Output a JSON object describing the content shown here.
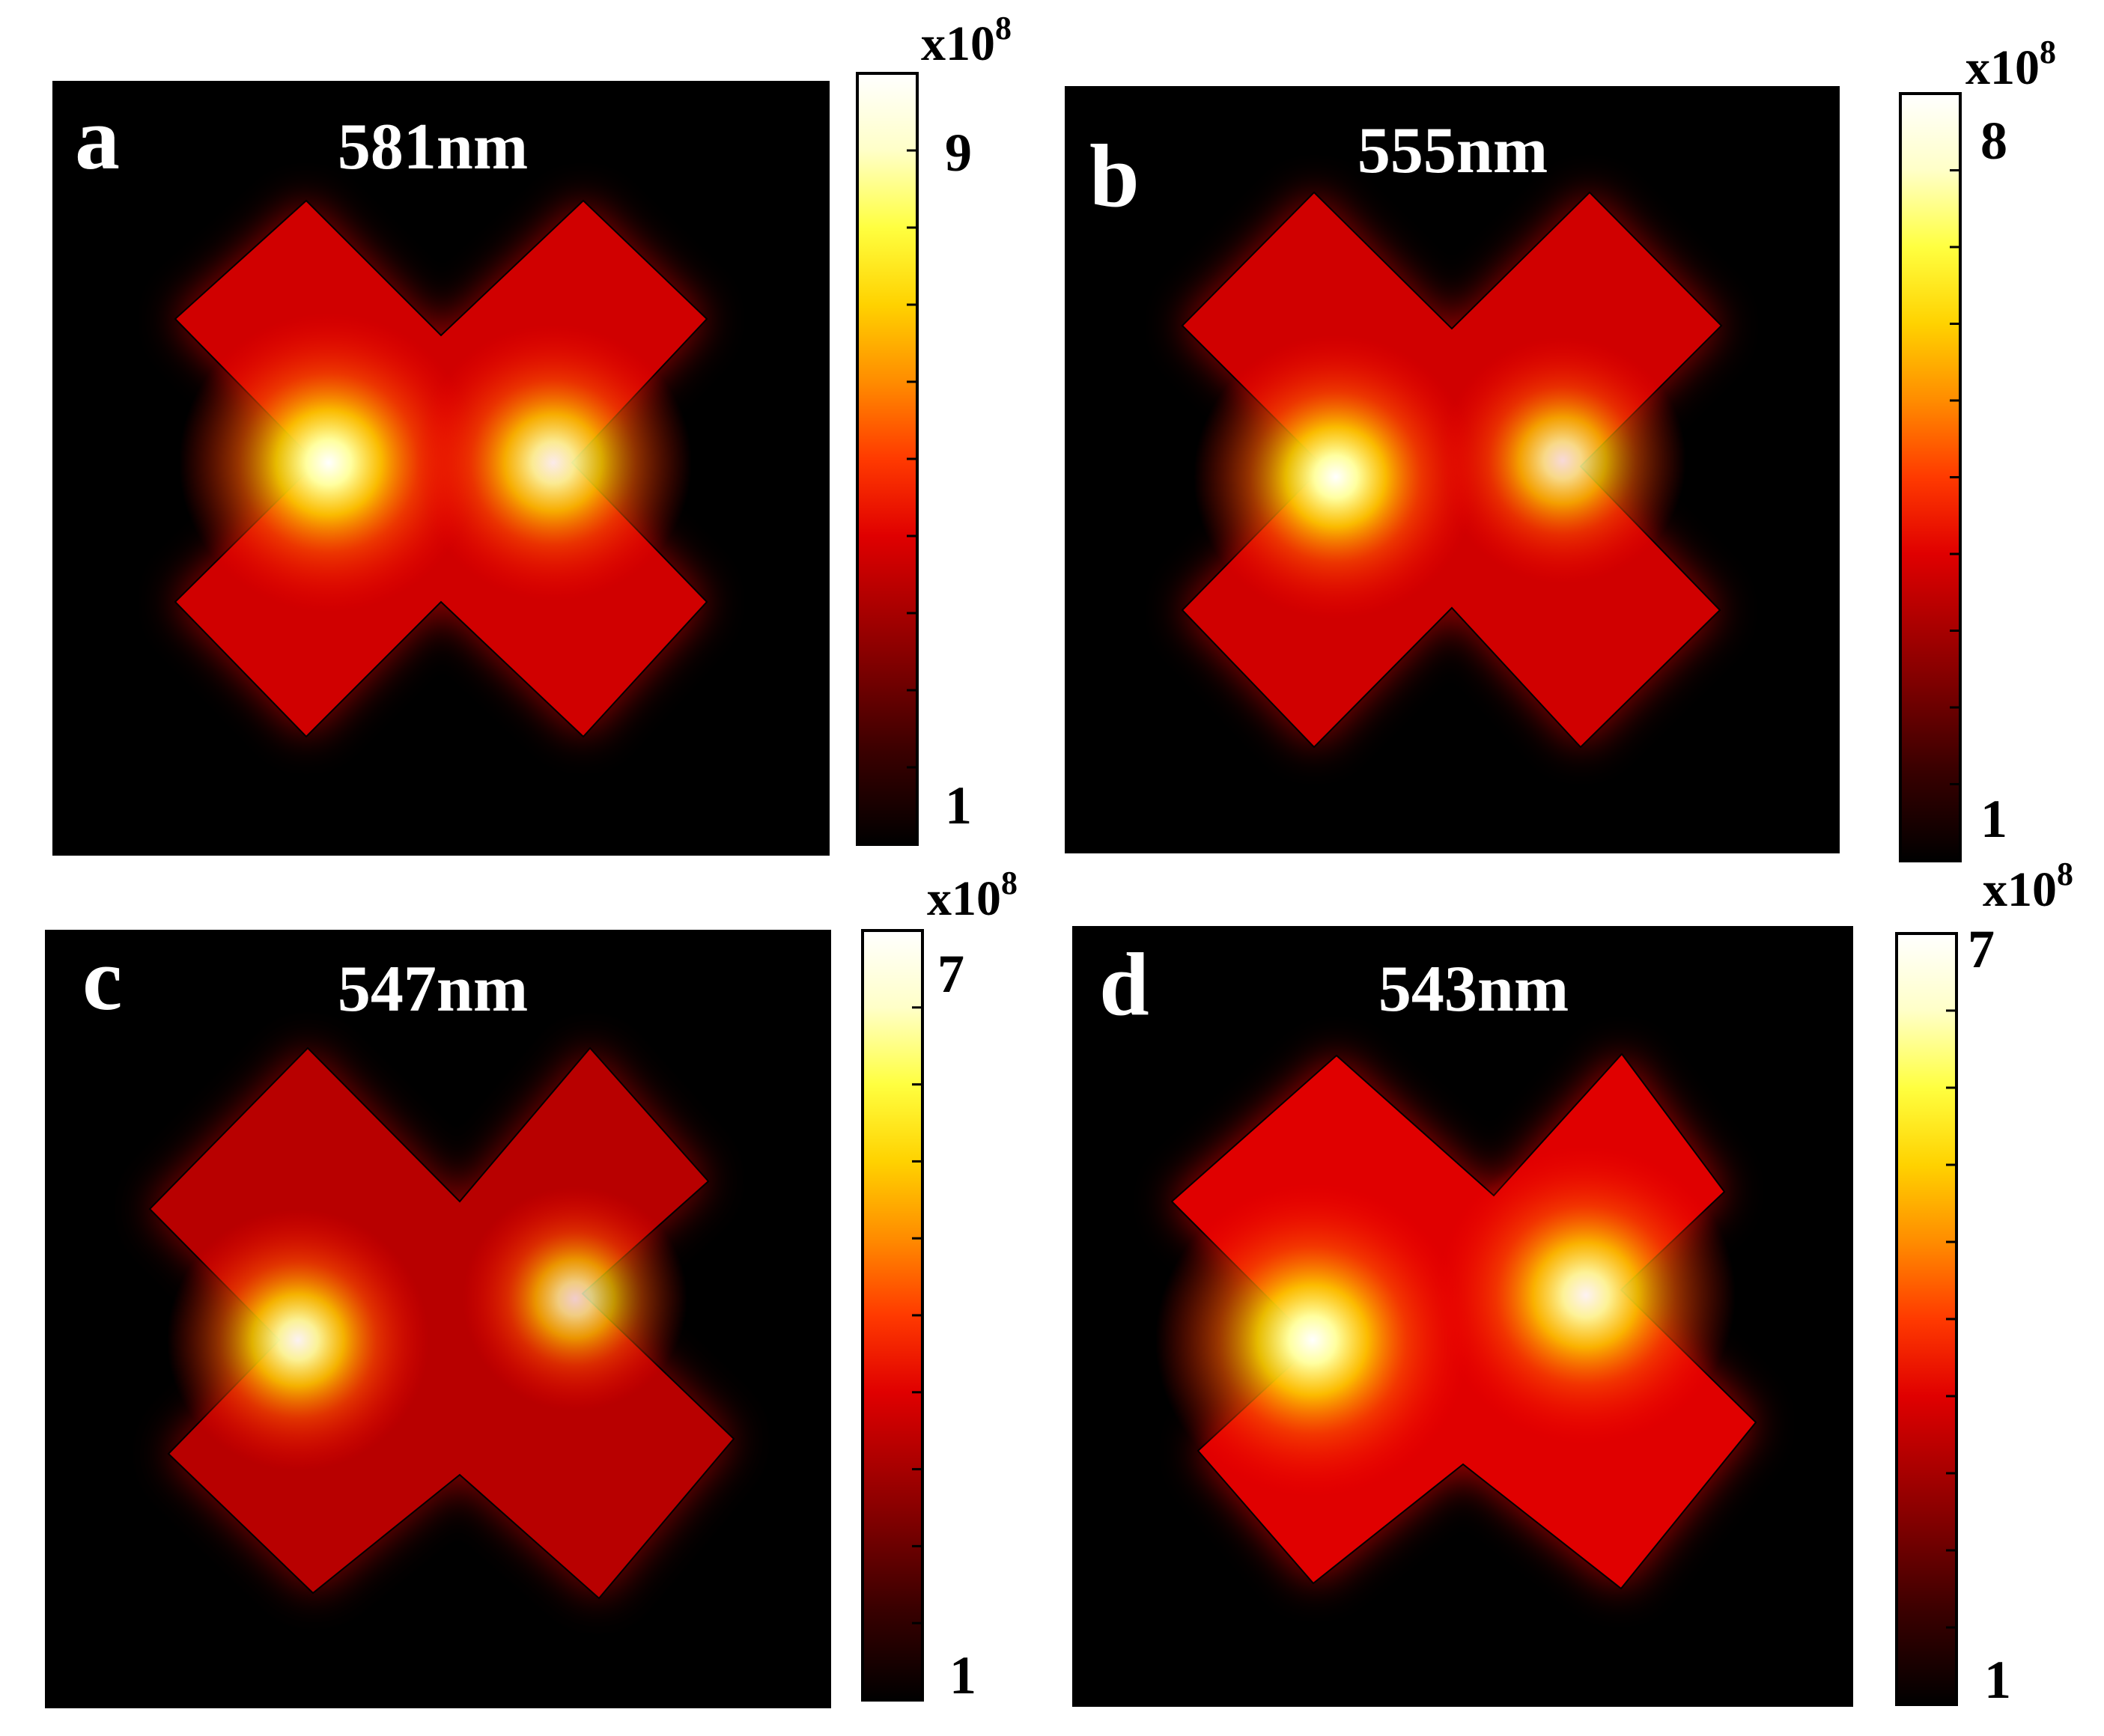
{
  "figure": {
    "panels": [
      {
        "letter": "a",
        "wavelength": "581nm",
        "scale": {
          "multiplier": "x10",
          "exponent": "8",
          "max_label": "9",
          "min_label": "1",
          "max": 9,
          "min": 1
        },
        "hotspots": [
          {
            "side": "left",
            "intensity": 1.0
          },
          {
            "side": "right",
            "intensity": 0.92
          }
        ],
        "background_intensity": 0.45
      },
      {
        "letter": "b",
        "wavelength": "555nm",
        "scale": {
          "multiplier": "x10",
          "exponent": "8",
          "max_label": "8",
          "min_label": "1",
          "max": 8,
          "min": 1
        },
        "hotspots": [
          {
            "side": "left",
            "intensity": 1.0
          },
          {
            "side": "right",
            "intensity": 0.85
          }
        ],
        "background_intensity": 0.4
      },
      {
        "letter": "c",
        "wavelength": "547nm",
        "scale": {
          "multiplier": "x10",
          "exponent": "8",
          "max_label": "7",
          "min_label": "1",
          "max": 7,
          "min": 1
        },
        "hotspots": [
          {
            "side": "left",
            "intensity": 0.95
          },
          {
            "side": "right",
            "intensity": 0.8
          }
        ],
        "background_intensity": 0.35
      },
      {
        "letter": "d",
        "wavelength": "543nm",
        "scale": {
          "multiplier": "x10",
          "exponent": "8",
          "max_label": "7",
          "min_label": "1",
          "max": 7,
          "min": 1
        },
        "hotspots": [
          {
            "side": "left",
            "intensity": 1.0
          },
          {
            "side": "right",
            "intensity": 0.95
          }
        ],
        "background_intensity": 0.55
      }
    ],
    "colors": {
      "background": "#000000",
      "colormap": [
        "#000000",
        "#3a0000",
        "#8a0000",
        "#e00000",
        "#ff3a00",
        "#ff8c00",
        "#ffd200",
        "#ffff40",
        "#ffffc8",
        "#ffffff"
      ],
      "outline": "#000000"
    }
  }
}
